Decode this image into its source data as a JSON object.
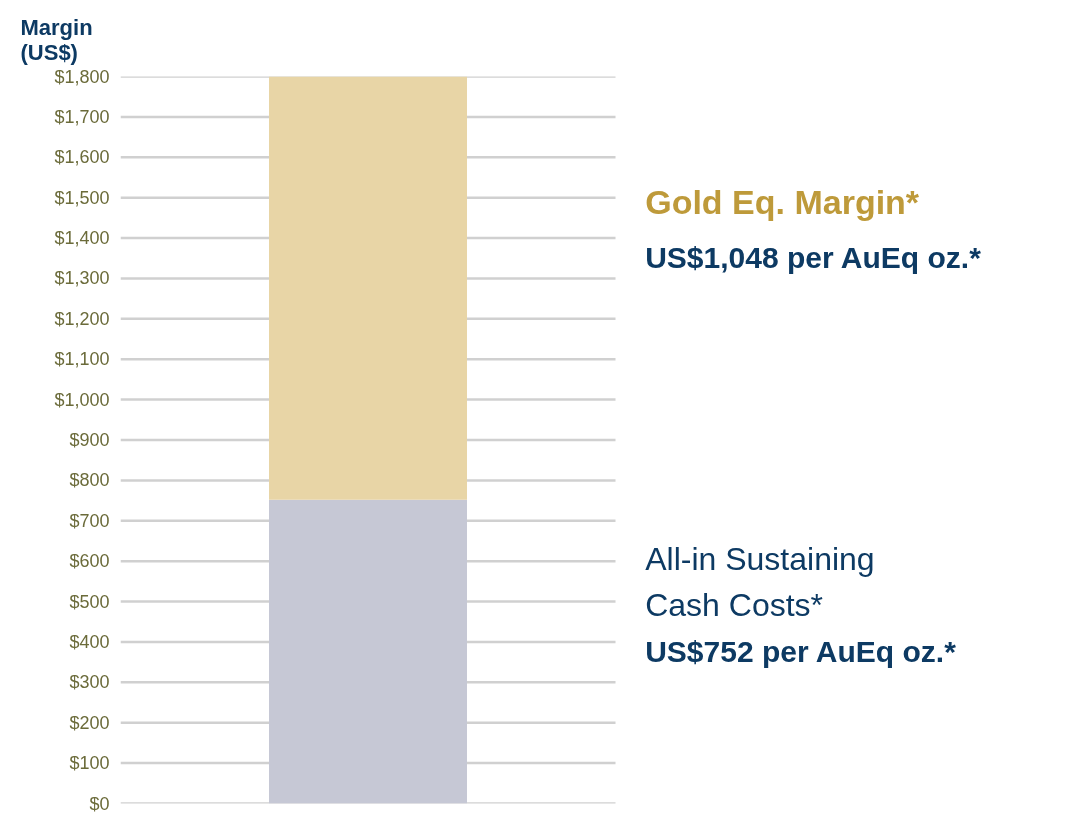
{
  "chart_data": {
    "type": "bar",
    "stacked": true,
    "ylabel": "Margin (US$)",
    "categories": [
      null
    ],
    "series": [
      {
        "color": "#c6c8d5",
        "values": [
          752
        ]
      },
      {
        "color": "#e8d5a6",
        "values": [
          1048
        ]
      }
    ],
    "annotations": [
      "Gold Eq. Margin*",
      "US$1,048 per AuEq oz.*",
      "All-in Sustaining Cash Costs*",
      "US$752 per AuEq oz.*"
    ],
    "ylim": [
      0,
      1800
    ],
    "yticks": [
      {
        "value": 0,
        "label": "$0"
      },
      {
        "value": 100,
        "label": "$100"
      },
      {
        "value": 200,
        "label": "$200"
      },
      {
        "value": 300,
        "label": "$300"
      },
      {
        "value": 400,
        "label": "$400"
      },
      {
        "value": 500,
        "label": "$500"
      },
      {
        "value": 600,
        "label": "$600"
      },
      {
        "value": 700,
        "label": "$700"
      },
      {
        "value": 800,
        "label": "$800"
      },
      {
        "value": 900,
        "label": "$900"
      },
      {
        "value": 1000,
        "label": "$1,000"
      },
      {
        "value": 1100,
        "label": "$1,100"
      },
      {
        "value": 1200,
        "label": "$1,200"
      },
      {
        "value": 1300,
        "label": "$1,300"
      },
      {
        "value": 1400,
        "label": "$1,400"
      },
      {
        "value": 1500,
        "label": "$1,500"
      },
      {
        "value": 1600,
        "label": "$1,600"
      },
      {
        "value": 1700,
        "label": "$1,700"
      },
      {
        "value": 1800,
        "label": "$1,800"
      }
    ],
    "grid": "y",
    "tick_labels": "y"
  }
}
